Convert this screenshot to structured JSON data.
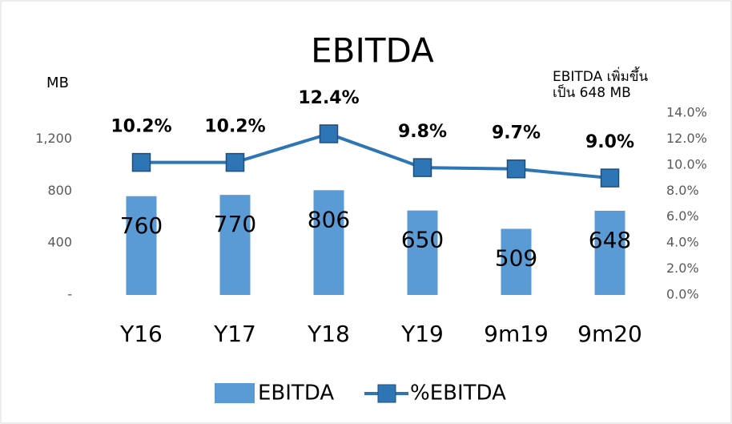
{
  "chart_data": {
    "type": "bar-line",
    "title": "EBITDA",
    "y_label": "MB",
    "annotation": [
      "EBITDA เพิ่มขึ้น",
      "เป็น 648 MB"
    ],
    "categories": [
      "Y16",
      "Y17",
      "Y18",
      "Y19",
      "9m19",
      "9m20"
    ],
    "series": [
      {
        "name": "EBITDA",
        "type": "bar",
        "color": "#5b9bd5",
        "values": [
          760,
          770,
          806,
          650,
          509,
          648
        ]
      },
      {
        "name": "%EBITDA",
        "type": "line",
        "axis": "y2",
        "color": "#2e75b6",
        "values": [
          10.2,
          10.2,
          12.4,
          9.8,
          9.7,
          9.0
        ],
        "value_labels": [
          "10.2%",
          "10.2%",
          "12.4%",
          "9.8%",
          "9.7%",
          "9.0%"
        ]
      }
    ],
    "ylim": [
      0,
      1400
    ],
    "yticks": [
      {
        "value": 0,
        "label": "-"
      },
      400,
      800,
      {
        "value": 1200,
        "label": "1,200"
      }
    ],
    "y2lim": [
      0,
      14
    ],
    "y2ticks": [
      {
        "value": 0,
        "label": "0.0%"
      },
      {
        "value": 2,
        "label": "2.0%"
      },
      {
        "value": 4,
        "label": "4.0%"
      },
      {
        "value": 6,
        "label": "6.0%"
      },
      {
        "value": 8,
        "label": "8.0%"
      },
      {
        "value": 10,
        "label": "10.0%"
      },
      {
        "value": 12,
        "label": "12.0%"
      },
      {
        "value": 14,
        "label": "14.0%"
      }
    ],
    "legend": "bottom"
  }
}
